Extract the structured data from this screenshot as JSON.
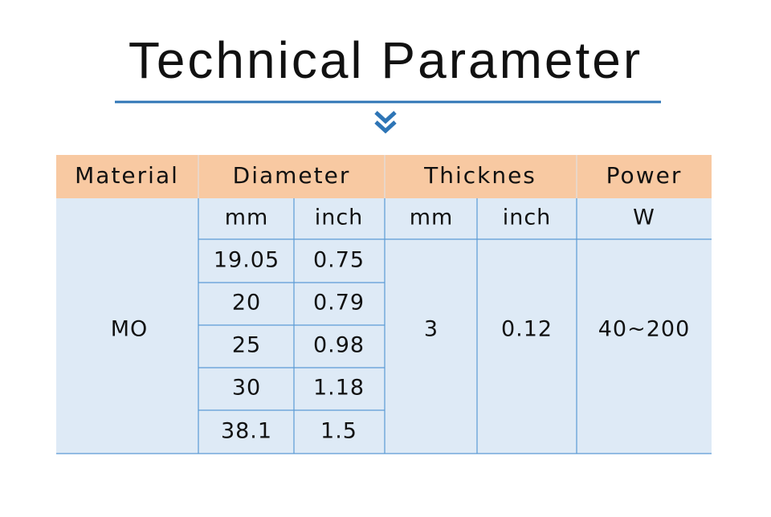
{
  "title": "Technical Parameter",
  "table": {
    "header": [
      "Material",
      "Diameter",
      "Thicknes",
      "Power"
    ],
    "subheader": [
      "mm",
      "inch",
      "mm",
      "inch",
      "W"
    ],
    "material": "MO",
    "diameter": [
      [
        "19.05",
        "0.75"
      ],
      [
        "20",
        "0.79"
      ],
      [
        "25",
        "0.98"
      ],
      [
        "30",
        "1.18"
      ],
      [
        "38.1",
        "1.5"
      ]
    ],
    "thickness_mm": "3",
    "thickness_inch": "0.12",
    "power": "40~200"
  }
}
